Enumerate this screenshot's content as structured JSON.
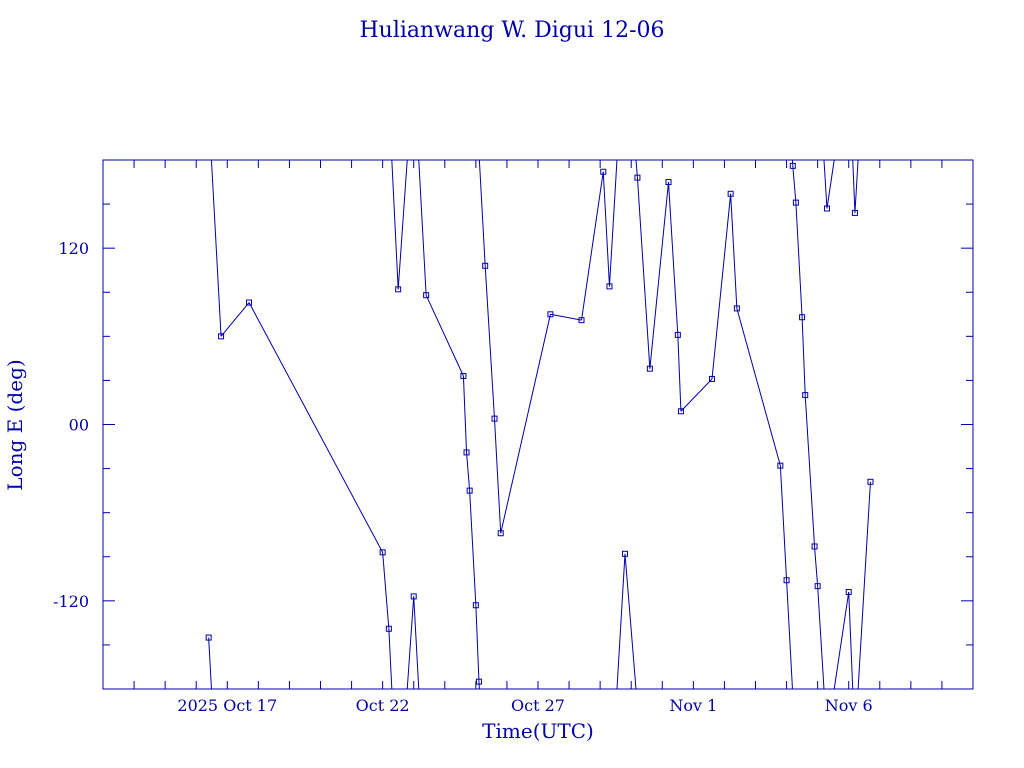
{
  "chart_data": {
    "type": "line",
    "title": "Hulianwang W. Digui 12-06",
    "xlabel": "Time(UTC)",
    "ylabel": "Long E (deg)",
    "color": "#0000a8",
    "x_tick_labels": [
      "2025 Oct 17",
      "Oct 22",
      "Oct 27",
      "Nov  1",
      "Nov  6"
    ],
    "y_tick_labels": [
      "-120",
      "00",
      "120"
    ],
    "ylim": [
      -180,
      180
    ],
    "x_range_days": [
      "Oct 13.0",
      "Nov 10.0"
    ],
    "wrap": true,
    "series": [
      {
        "values": [
          [
            "Oct 16.4",
            -145
          ],
          [
            "Oct 16.8",
            60
          ],
          [
            "Oct 17.7",
            83
          ],
          [
            "Oct 22.0",
            -87
          ],
          [
            "Oct 22.2",
            -139
          ],
          [
            "Oct 22.5",
            92
          ],
          [
            "Oct 23.0",
            -117
          ],
          [
            "Oct 23.4",
            88
          ],
          [
            "Oct 24.6",
            33
          ],
          [
            "Oct 24.7",
            -19
          ],
          [
            "Oct 24.8",
            -45
          ],
          [
            "Oct 25.0",
            -123
          ],
          [
            "Oct 25.1",
            -175
          ],
          [
            "Oct 25.3",
            108
          ],
          [
            "Oct 25.6",
            4
          ],
          [
            "Oct 25.8",
            -74
          ],
          [
            "Oct 27.4",
            75
          ],
          [
            "Oct 28.4",
            71
          ],
          [
            "Oct 29.1",
            172
          ],
          [
            "Oct 29.3",
            94
          ],
          [
            "Oct 29.8",
            -88
          ],
          [
            "Oct 30.2",
            168
          ],
          [
            "Oct 30.6",
            38
          ],
          [
            "Oct 31.2",
            165
          ],
          [
            "Oct 31.5",
            61
          ],
          [
            "Oct 31.6",
            9
          ],
          [
            "Nov 1.6",
            31
          ],
          [
            "Nov 2.2",
            157
          ],
          [
            "Nov 2.4",
            79
          ],
          [
            "Nov 3.8",
            -28
          ],
          [
            "Nov 4.0",
            -106
          ],
          [
            "Nov 4.2",
            176
          ],
          [
            "Nov 4.3",
            151
          ],
          [
            "Nov 4.5",
            73
          ],
          [
            "Nov 4.6",
            20
          ],
          [
            "Nov 4.9",
            -83
          ],
          [
            "Nov 5.0",
            -110
          ],
          [
            "Nov 5.3",
            147
          ],
          [
            "Nov 6.0",
            -114
          ],
          [
            "Nov 6.2",
            144
          ],
          [
            "Nov 6.7",
            -39
          ]
        ]
      }
    ]
  }
}
